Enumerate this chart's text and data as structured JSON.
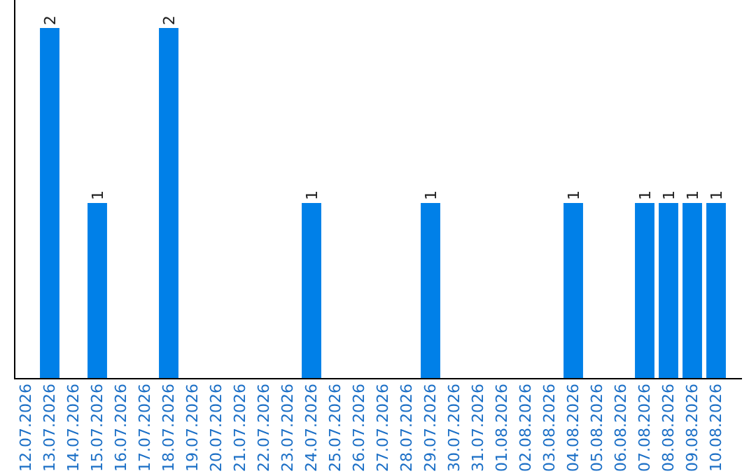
{
  "chart_data": {
    "type": "bar",
    "categories": [
      "12.07.2026",
      "13.07.2026",
      "14.07.2026",
      "15.07.2026",
      "16.07.2026",
      "17.07.2026",
      "18.07.2026",
      "19.07.2026",
      "20.07.2026",
      "21.07.2026",
      "22.07.2026",
      "23.07.2026",
      "24.07.2026",
      "25.07.2026",
      "26.07.2026",
      "27.07.2026",
      "28.07.2026",
      "29.07.2026",
      "30.07.2026",
      "31.07.2026",
      "01.08.2026",
      "02.08.2026",
      "03.08.2026",
      "04.08.2026",
      "05.08.2026",
      "06.08.2026",
      "07.08.2026",
      "08.08.2026",
      "09.08.2026",
      "10.08.2026"
    ],
    "values": [
      0,
      2,
      0,
      1,
      0,
      0,
      2,
      0,
      0,
      0,
      0,
      0,
      1,
      0,
      0,
      0,
      0,
      1,
      0,
      0,
      0,
      0,
      0,
      1,
      0,
      0,
      1,
      1,
      1,
      1
    ],
    "value_labels": [
      null,
      "2",
      null,
      "1",
      null,
      null,
      "2",
      null,
      null,
      null,
      null,
      null,
      "1",
      null,
      null,
      null,
      null,
      "1",
      null,
      null,
      null,
      null,
      null,
      "1",
      null,
      null,
      "1",
      "1",
      "1",
      "1"
    ],
    "color": "#0080e8",
    "tick_labels": "x"
  }
}
